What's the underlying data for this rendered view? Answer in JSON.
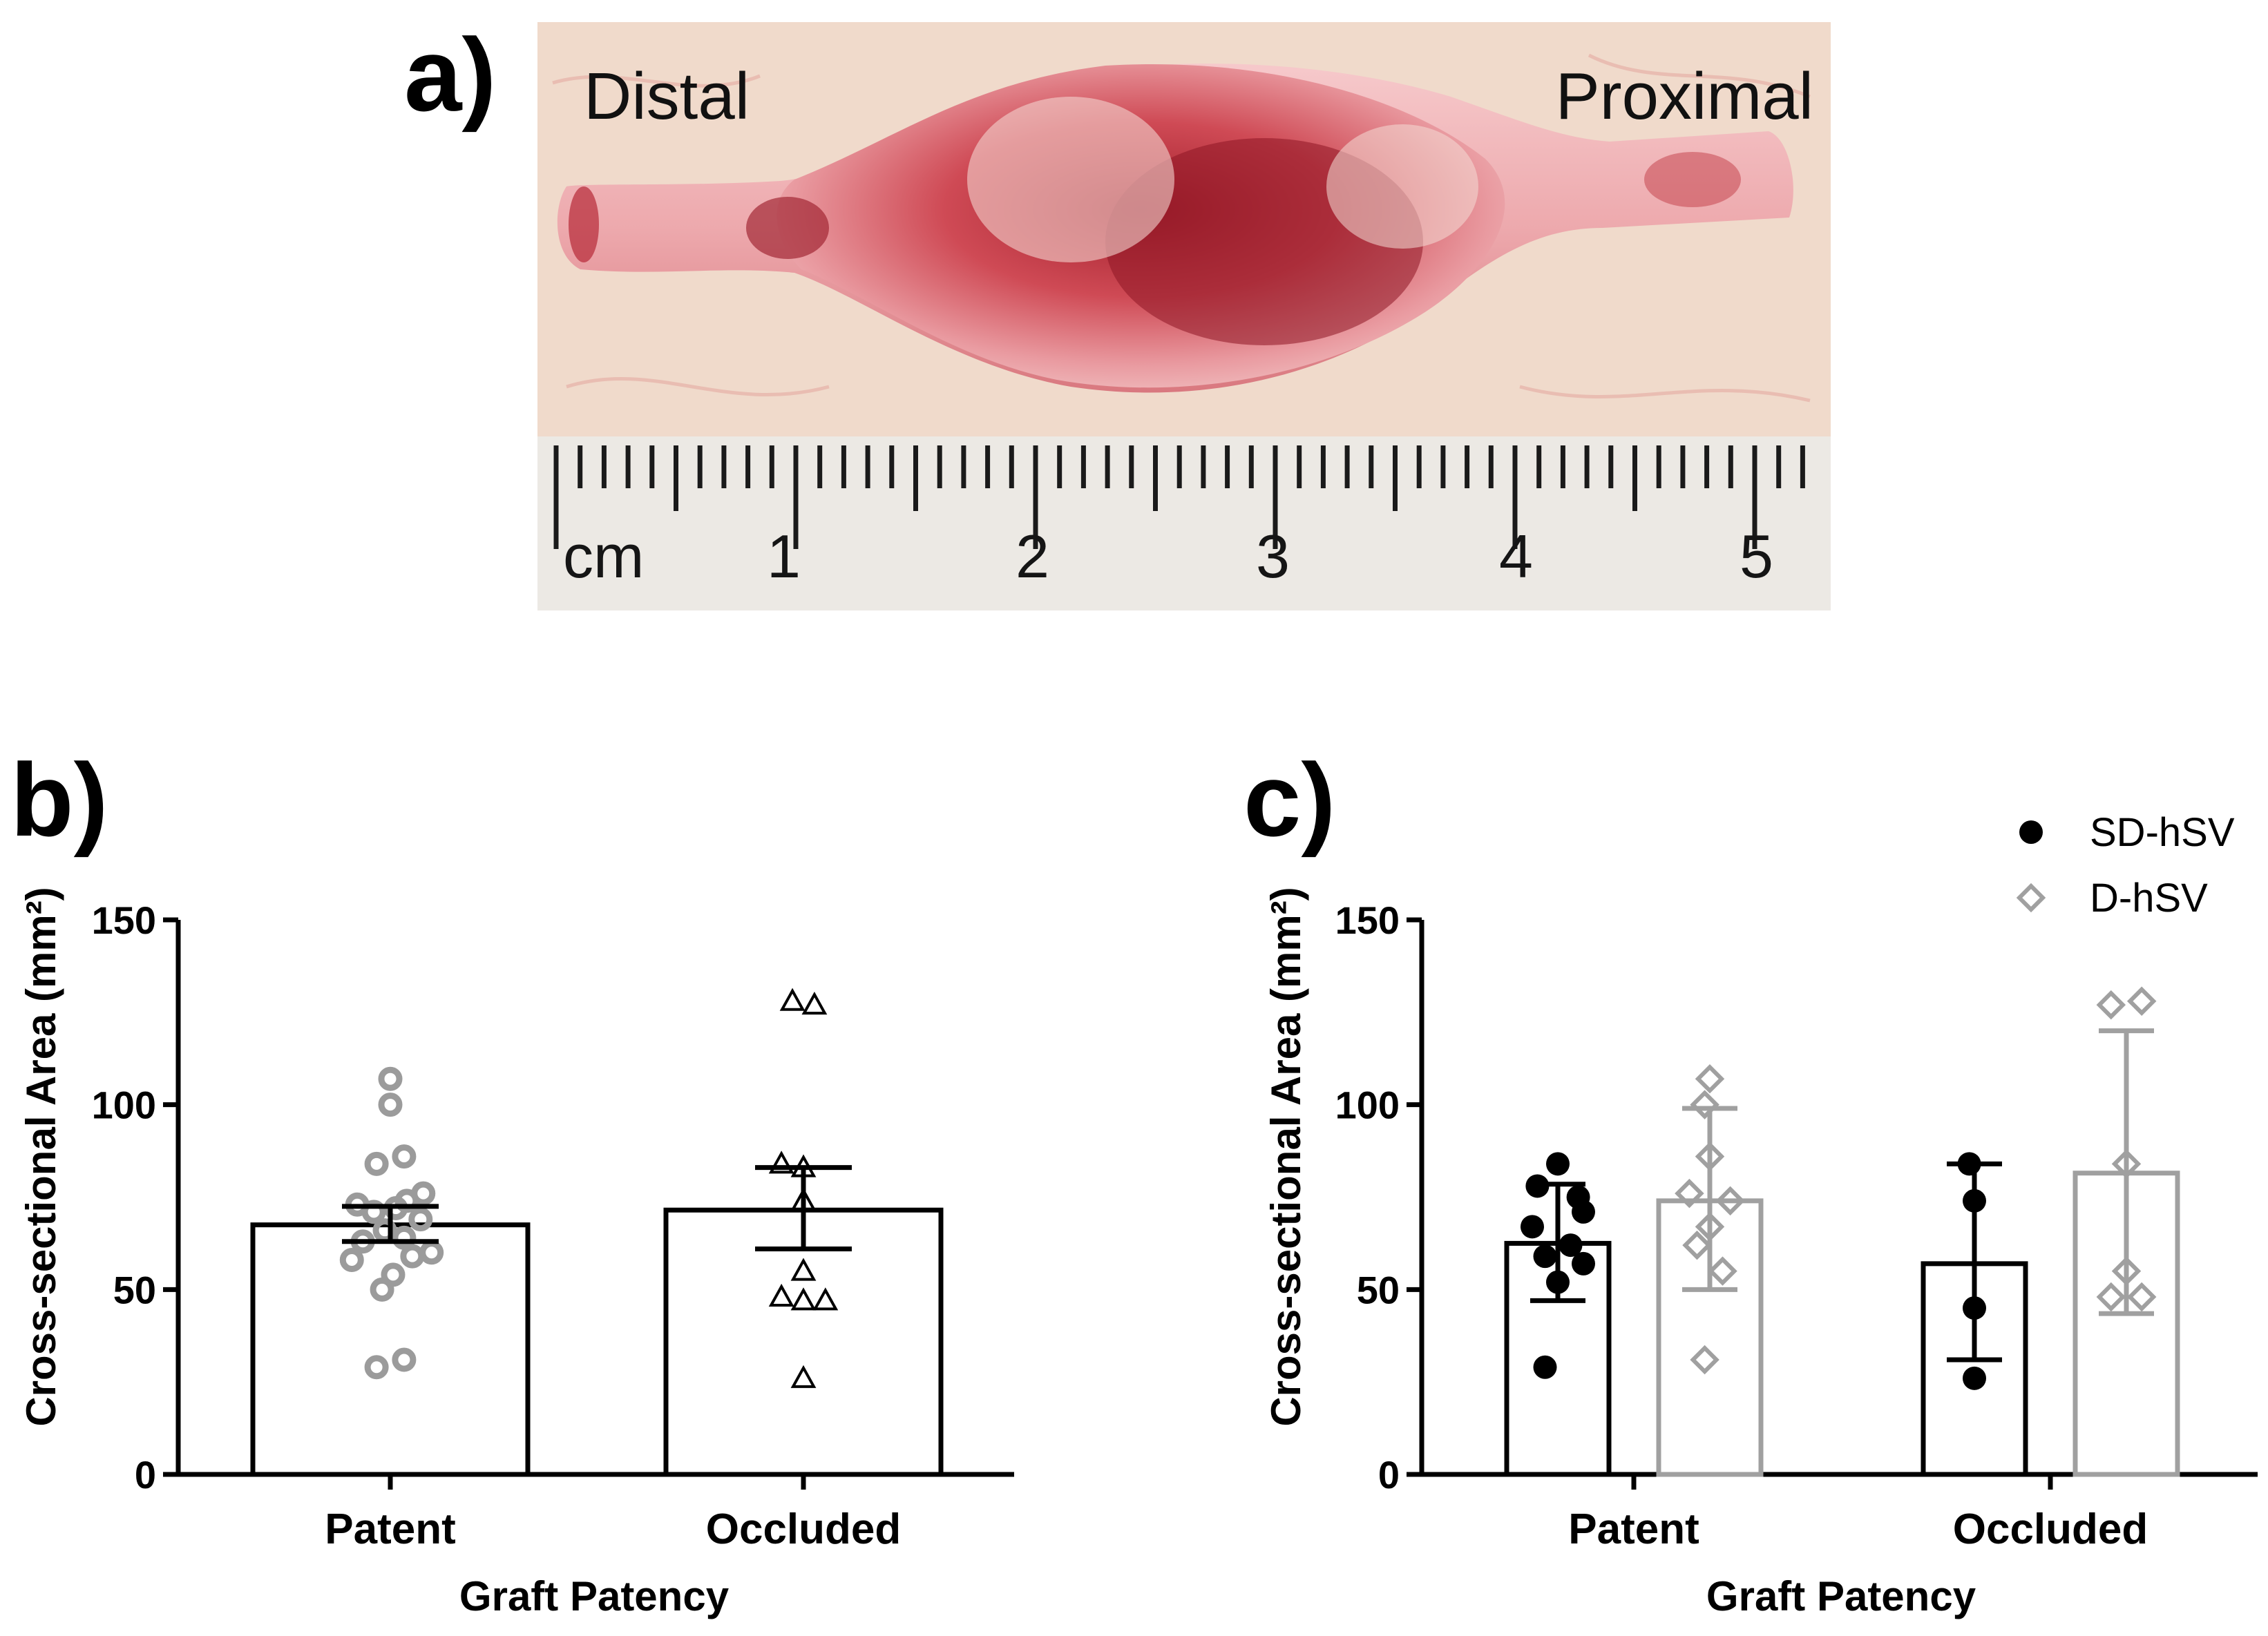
{
  "panels": {
    "a": {
      "letter": "a)",
      "left_label": "Distal",
      "right_label": "Proximal",
      "ruler_unit": "cm",
      "ruler_numbers": [
        "1",
        "2",
        "3",
        "4",
        "5"
      ]
    },
    "b": {
      "letter": "b)"
    },
    "c": {
      "letter": "c)"
    }
  },
  "chart_data": [
    {
      "panel": "b",
      "type": "bar",
      "xlabel": "Graft Patency",
      "ylabel": "Cross-sectional Area (mm²)",
      "ylim": [
        0,
        150
      ],
      "yticks": [
        0,
        50,
        100,
        150
      ],
      "categories": [
        "Patent",
        "Occluded"
      ],
      "values": [
        67.5,
        71.5
      ],
      "error": [
        {
          "low": 63,
          "high": 72.5
        },
        {
          "low": 61,
          "high": 83
        }
      ],
      "points": [
        {
          "category": "Patent",
          "marker": "circle",
          "color": "#9b9b9b",
          "y": [
            107,
            100,
            86,
            84,
            76,
            74,
            73,
            72,
            71,
            69,
            66,
            64,
            63,
            60,
            59,
            58,
            54,
            50,
            31,
            29
          ],
          "x": [
            0.0,
            0.0,
            0.05,
            -0.05,
            0.12,
            0.06,
            -0.12,
            0.02,
            -0.06,
            0.11,
            -0.02,
            0.05,
            -0.1,
            0.15,
            0.08,
            -0.14,
            0.01,
            -0.03,
            0.05,
            -0.05
          ]
        },
        {
          "category": "Occluded",
          "marker": "triangle",
          "color": "#000000",
          "y": [
            128,
            127,
            84,
            83,
            74,
            55,
            48,
            47,
            47,
            26
          ],
          "x": [
            -0.04,
            0.04,
            -0.08,
            0.0,
            0.0,
            0.0,
            -0.08,
            0.0,
            0.08,
            0.0
          ]
        }
      ]
    },
    {
      "panel": "c",
      "type": "bar",
      "xlabel": "Graft Patency",
      "ylabel": "Cross-sectional Area (mm²)",
      "ylim": [
        0,
        150
      ],
      "yticks": [
        0,
        50,
        100,
        150
      ],
      "categories": [
        "Patent",
        "Occluded"
      ],
      "legend_position": "top-right",
      "series": [
        {
          "name": "SD-hSV",
          "marker": "circle",
          "color": "#000000",
          "values": [
            62.5,
            57
          ],
          "sd": [
            {
              "low": 47,
              "high": 78.5
            },
            {
              "low": 31,
              "high": 84
            }
          ],
          "points": [
            {
              "y": [
                84,
                78,
                75,
                71,
                67,
                62,
                59,
                57,
                52,
                29
              ],
              "x": [
                0.0,
                -0.08,
                0.08,
                0.1,
                -0.1,
                0.05,
                -0.05,
                0.1,
                0.0,
                -0.05
              ]
            },
            {
              "y": [
                84,
                74,
                45,
                26
              ],
              "x": [
                -0.02,
                0.0,
                0.0,
                0.0
              ]
            }
          ]
        },
        {
          "name": "D-hSV",
          "marker": "diamond",
          "color": "#a0a0a0",
          "values": [
            74,
            81.5
          ],
          "sd": [
            {
              "low": 50,
              "high": 99
            },
            {
              "low": 43.5,
              "high": 120
            }
          ],
          "points": [
            {
              "y": [
                107,
                100,
                86,
                76,
                74,
                67,
                62,
                55,
                31
              ],
              "x": [
                0.0,
                -0.02,
                0.0,
                -0.08,
                0.08,
                0.0,
                -0.05,
                0.05,
                -0.02
              ]
            },
            {
              "y": [
                128,
                127,
                84,
                55,
                48,
                48
              ],
              "x": [
                0.06,
                -0.06,
                0.0,
                0.0,
                -0.06,
                0.06
              ]
            }
          ]
        }
      ]
    }
  ]
}
